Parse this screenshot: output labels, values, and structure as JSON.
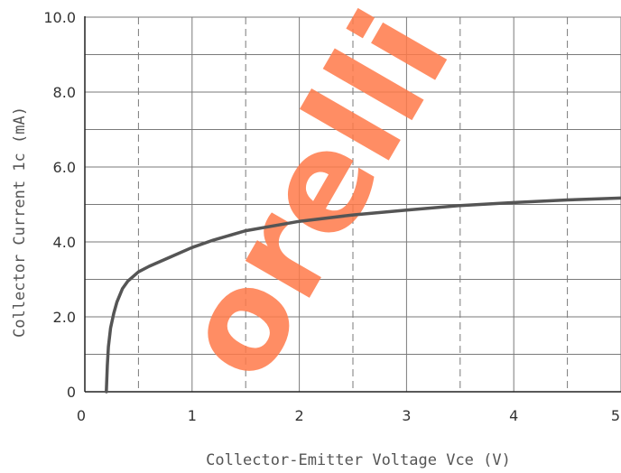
{
  "chart_data": {
    "type": "line",
    "title": "",
    "xlabel": "Collector-Emitter Voltage Vce (V)",
    "ylabel": "Collector Current 1c (mA)",
    "xlim": [
      0,
      5
    ],
    "ylim": [
      0,
      10
    ],
    "x_ticks": [
      "0",
      "1",
      "2",
      "3",
      "4",
      "5"
    ],
    "y_ticks": [
      "0",
      "2.0",
      "4.0",
      "6.0",
      "8.0",
      "10.0"
    ],
    "grid": true,
    "legend": "none",
    "line_color": "#555555",
    "series": [
      {
        "x": [
          0.2,
          0.21,
          0.22,
          0.24,
          0.27,
          0.3,
          0.35,
          0.4,
          0.5,
          0.6,
          0.8,
          1.0,
          1.2,
          1.5,
          2.0,
          2.5,
          3.0,
          3.5,
          4.0,
          4.5,
          5.0
        ],
        "values": [
          0.0,
          0.7,
          1.2,
          1.7,
          2.1,
          2.4,
          2.75,
          2.95,
          3.2,
          3.35,
          3.6,
          3.85,
          4.05,
          4.3,
          4.55,
          4.72,
          4.85,
          4.97,
          5.05,
          5.12,
          5.17
        ]
      }
    ]
  },
  "watermark": {
    "text": "orelli",
    "color": "#ff7a4a"
  }
}
